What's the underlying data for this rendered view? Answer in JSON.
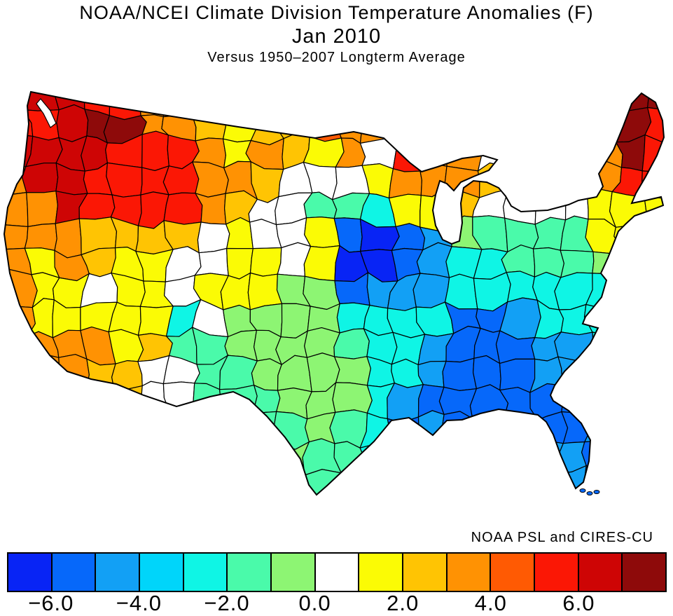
{
  "header": {
    "title": "NOAA/NCEI Climate Division Temperature Anomalies (F)",
    "subtitle": "Jan 2010",
    "caption": "Versus 1950–2007 Longterm Average"
  },
  "attribution": "NOAA PSL and CIRES-CU",
  "chart_data": {
    "type": "heatmap",
    "subtype": "choropleth-map",
    "region_shown": "contiguous United States climate divisions",
    "title": "NOAA/NCEI Climate Division Temperature Anomalies (F)",
    "subtitle": "Jan 2010",
    "caption": "Versus 1950–2007 Longterm Average",
    "units": "F",
    "colorbar": {
      "orientation": "horizontal",
      "bin_start": -7.0,
      "bin_size": 1.0,
      "bin_count": 15,
      "tick_values": [
        -6,
        -4,
        -2,
        0,
        2,
        4,
        6
      ],
      "tick_labels": [
        "−6.0",
        "−4.0",
        "−2.0",
        "0.0",
        "2.0",
        "4.0",
        "6.0"
      ],
      "colors": [
        "#0824F5",
        "#0668FA",
        "#12A0F5",
        "#00D5FA",
        "#0FF5E5",
        "#4AFAAA",
        "#8DF573",
        "#FFFFFF",
        "#FBFB05",
        "#FFC403",
        "#FF9203",
        "#FF5A03",
        "#FB1705",
        "#CE0505",
        "#8E0A0A"
      ]
    },
    "anomaly_field": {
      "note": "Coarse sampling of the mapped anomaly (F) on a 24x16 grid over the map area; letters are colorbar bins",
      "key": {
        "a": -6.5,
        "b": -5.5,
        "c": -4.5,
        "d": -3.5,
        "e": -2.5,
        "f": -1.5,
        "g": -0.5,
        "w": 0.5,
        "y": 1.5,
        "m": 2.5,
        "o": 3.5,
        "r": 4.5,
        "R": 5.5,
        "C": 6.5,
        "M": 7.5
      },
      "cols": 24,
      "rows": 16,
      "grid": [
        "RCCRRoomymorooowwwwwMMMM",
        "RRCMMoomymmrooowwwwwoMMR",
        "CCCCRRRoyomyowRoowwwwoMR",
        "oCCRRRRoomwwwyooomwwwoRR",
        "ooCRRRRomwwffeyymwwwwyyy",
        "ooommmmwywwybabcgffffyyy",
        "oyomyywwyywyaabceefffgwe",
        "oyywyywyyyggbccceeeeeeee",
        "oyyyyyewggggeeeebbceeeee",
        "ooooymffggggfeecbbbcceee",
        "ooommwwffggggeecbbbcceee",
        "oommmwwfffgggecbbbbbbcee",
        "oommwwwffffgfebcbbbbbcee",
        "oomwwwwfffgffeeccccccbee",
        "oowwwwwffggfeeeccccccbee",
        "oowwwwwffggfeeeccccccbee"
      ]
    },
    "regional_highlights": [
      {
        "region": "North-central / northeast Washington",
        "anomaly_f": "+7 to +8"
      },
      {
        "region": "Pacific Northwest (WA, OR, ID, western MT)",
        "anomaly_f": "+4 to +7"
      },
      {
        "region": "Maine interior",
        "anomaly_f": "+7 to +8"
      },
      {
        "region": "Northern Rockies and High Plains",
        "anomaly_f": "+2 to +4"
      },
      {
        "region": "Upper Midwest (northern MN, WI, MI)",
        "anomaly_f": "+2 to +5"
      },
      {
        "region": "Northeast (NY, PA, New England)",
        "anomaly_f": "+1 to +3"
      },
      {
        "region": "Iowa and northern Missouri",
        "anomaly_f": "-6 to -7"
      },
      {
        "region": "Deep South (TN, AL, GA, MS)",
        "anomaly_f": "-4 to -6"
      },
      {
        "region": "North-central Florida",
        "anomaly_f": "-5 to -6"
      },
      {
        "region": "Texas and Southern Plains",
        "anomaly_f": "-1 to -3"
      },
      {
        "region": "Southwest deserts (CA, AZ, NV)",
        "anomaly_f": "+1 to +3"
      },
      {
        "region": "Central Rockies (UT, CO, WY)",
        "anomaly_f": "0 to +2"
      }
    ]
  }
}
